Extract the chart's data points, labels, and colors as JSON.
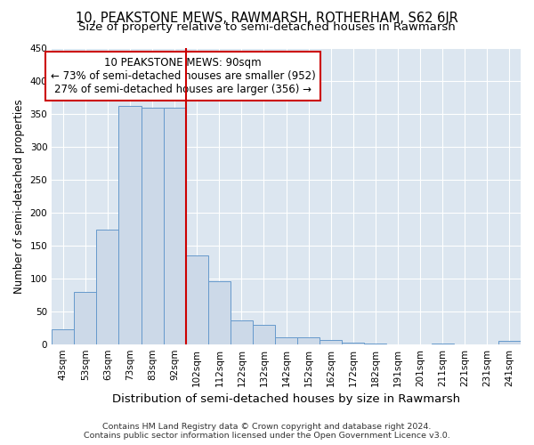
{
  "title": "10, PEAKSTONE MEWS, RAWMARSH, ROTHERHAM, S62 6JR",
  "subtitle": "Size of property relative to semi-detached houses in Rawmarsh",
  "xlabel": "Distribution of semi-detached houses by size in Rawmarsh",
  "ylabel": "Number of semi-detached properties",
  "bar_labels": [
    "43sqm",
    "53sqm",
    "63sqm",
    "73sqm",
    "83sqm",
    "92sqm",
    "102sqm",
    "112sqm",
    "122sqm",
    "132sqm",
    "142sqm",
    "152sqm",
    "162sqm",
    "172sqm",
    "182sqm",
    "191sqm",
    "201sqm",
    "211sqm",
    "221sqm",
    "231sqm",
    "241sqm"
  ],
  "bar_values": [
    23,
    80,
    174,
    362,
    360,
    360,
    135,
    96,
    36,
    29,
    10,
    10,
    6,
    2,
    1,
    0,
    0,
    1,
    0,
    0,
    5
  ],
  "bar_color": "#ccd9e8",
  "bar_edgecolor": "#6699cc",
  "vline_index": 5,
  "vline_color": "#cc0000",
  "annotation_title": "10 PEAKSTONE MEWS: 90sqm",
  "annotation_line1": "← 73% of semi-detached houses are smaller (952)",
  "annotation_line2": "27% of semi-detached houses are larger (356) →",
  "annotation_box_facecolor": "#ffffff",
  "annotation_box_edgecolor": "#cc0000",
  "ylim": [
    0,
    450
  ],
  "yticks": [
    0,
    50,
    100,
    150,
    200,
    250,
    300,
    350,
    400,
    450
  ],
  "background_color": "#dce6f0",
  "grid_color": "#ffffff",
  "footer_line1": "Contains HM Land Registry data © Crown copyright and database right 2024.",
  "footer_line2": "Contains public sector information licensed under the Open Government Licence v3.0.",
  "title_fontsize": 10.5,
  "subtitle_fontsize": 9.5,
  "ylabel_fontsize": 8.5,
  "xlabel_fontsize": 9.5,
  "tick_fontsize": 7.5,
  "annotation_fontsize": 8.5,
  "footer_fontsize": 6.8
}
